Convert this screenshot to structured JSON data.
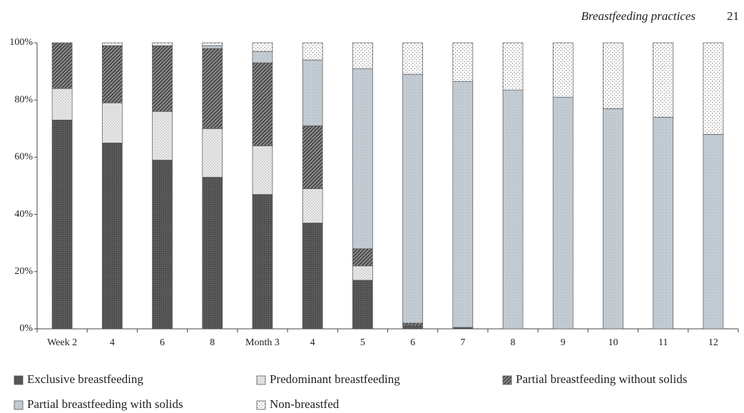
{
  "header": {
    "title": "Breastfeeding practices",
    "page": "21"
  },
  "chart_data": {
    "type": "stacked_bar",
    "categories": [
      "Week 2",
      "4",
      "6",
      "8",
      "Month 3",
      "4",
      "5",
      "6",
      "7",
      "8",
      "9",
      "10",
      "11",
      "12"
    ],
    "series": [
      {
        "name": "Exclusive breastfeeding",
        "color": "#5a5a5a",
        "values": [
          73,
          65,
          59,
          53,
          47,
          37,
          17,
          1,
          0.5,
          0,
          0,
          0,
          0,
          0
        ]
      },
      {
        "name": "Predominant breastfeeding",
        "color": "#ececec",
        "values": [
          11,
          14,
          17,
          17,
          17,
          12,
          5,
          0,
          0,
          0,
          0,
          0,
          0,
          0
        ]
      },
      {
        "name": "Partial breastfeeding without solids",
        "color": "#8a8a8a",
        "values": [
          16,
          20,
          23,
          28,
          29,
          22,
          6,
          1,
          0,
          0,
          0,
          0,
          0,
          0
        ]
      },
      {
        "name": "Partial breastfeeding with solids",
        "color": "#c3ccd3",
        "values": [
          0,
          0,
          0,
          1,
          4,
          23,
          63,
          87,
          86,
          83.5,
          81,
          77,
          74,
          68
        ]
      },
      {
        "name": "Non-breastfed",
        "color": "#ffffff",
        "values": [
          0,
          1,
          1,
          1,
          3,
          6,
          9,
          11,
          13.5,
          16.5,
          19,
          23,
          26,
          32
        ]
      }
    ],
    "ylim": [
      0,
      100
    ],
    "yticks": [
      {
        "value": 0,
        "label": "0%"
      },
      {
        "value": 20,
        "label": "20%"
      },
      {
        "value": 40,
        "label": "40%"
      },
      {
        "value": 60,
        "label": "60%"
      },
      {
        "value": 80,
        "label": "80%"
      },
      {
        "value": 100,
        "label": "100%"
      }
    ]
  }
}
